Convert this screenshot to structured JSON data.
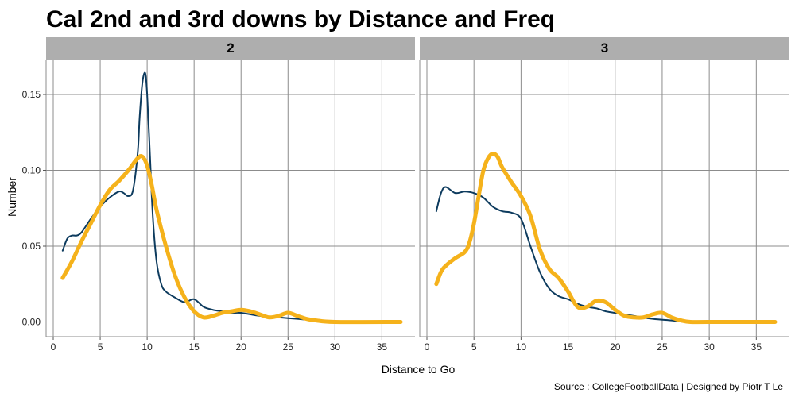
{
  "chart_data": {
    "type": "line",
    "title": "Cal 2nd and 3rd downs by Distance and Freq",
    "xlabel": "Distance to Go",
    "ylabel": "Number",
    "caption": "Source : CollegeFootballData | Designed by Piotr T Le",
    "xlim": [
      0,
      37
    ],
    "ylim": [
      0,
      0.165
    ],
    "x_ticks": [
      0,
      5,
      10,
      15,
      20,
      25,
      30,
      35
    ],
    "y_ticks": [
      0.0,
      0.05,
      0.1,
      0.15
    ],
    "y_tick_labels": [
      "0.00",
      "0.05",
      "0.10",
      "0.15"
    ],
    "colors": {
      "thin_series": "#0d3b5e",
      "thick_series": "#f5b21b",
      "strip": "#aeaeae",
      "grid": "#8c8c8c"
    },
    "facets": [
      {
        "label": "2",
        "series": [
          {
            "name": "thin",
            "x": [
              1,
              1.5,
              2,
              2.5,
              3,
              4,
              5,
              6,
              7,
              7.5,
              8,
              8.5,
              9,
              9.2,
              9.5,
              9.8,
              10,
              10.3,
              10.6,
              11,
              11.5,
              12,
              13,
              14,
              15,
              16,
              17,
              18,
              19,
              20,
              22,
              24,
              26,
              28,
              30,
              37
            ],
            "values": [
              0.047,
              0.055,
              0.057,
              0.057,
              0.059,
              0.068,
              0.076,
              0.082,
              0.086,
              0.085,
              0.083,
              0.087,
              0.112,
              0.135,
              0.158,
              0.164,
              0.15,
              0.11,
              0.07,
              0.04,
              0.025,
              0.02,
              0.016,
              0.013,
              0.015,
              0.01,
              0.008,
              0.007,
              0.006,
              0.006,
              0.004,
              0.003,
              0.002,
              0.001,
              0.0,
              0.0
            ]
          },
          {
            "name": "thick",
            "x": [
              1,
              2,
              3,
              4,
              5,
              6,
              7,
              8,
              9,
              9.5,
              10,
              10.5,
              11,
              12,
              13,
              14,
              15,
              16,
              17,
              18,
              19,
              20,
              21,
              22,
              23,
              24,
              25,
              26,
              27,
              28,
              30,
              37
            ],
            "values": [
              0.029,
              0.04,
              0.053,
              0.065,
              0.077,
              0.087,
              0.093,
              0.1,
              0.108,
              0.109,
              0.103,
              0.09,
              0.074,
              0.05,
              0.03,
              0.016,
              0.007,
              0.003,
              0.004,
              0.006,
              0.007,
              0.008,
              0.007,
              0.005,
              0.003,
              0.004,
              0.006,
              0.004,
              0.002,
              0.001,
              0.0,
              0.0
            ]
          }
        ]
      },
      {
        "label": "3",
        "series": [
          {
            "name": "thin",
            "x": [
              1,
              1.5,
              2,
              3,
              4,
              5,
              6,
              7,
              8,
              9,
              10,
              11,
              12,
              13,
              14,
              15,
              16,
              17,
              18,
              19,
              20,
              21,
              22,
              24,
              26,
              28,
              37
            ],
            "values": [
              0.073,
              0.085,
              0.089,
              0.085,
              0.086,
              0.085,
              0.082,
              0.076,
              0.073,
              0.072,
              0.068,
              0.05,
              0.033,
              0.022,
              0.017,
              0.015,
              0.012,
              0.01,
              0.009,
              0.007,
              0.006,
              0.005,
              0.004,
              0.002,
              0.001,
              0.0,
              0.0
            ]
          },
          {
            "name": "thick",
            "x": [
              1,
              1.5,
              2,
              3,
              4,
              4.5,
              5,
              5.5,
              6,
              6.5,
              7,
              7.5,
              8,
              9,
              10,
              11,
              12,
              13,
              14,
              15,
              16,
              17,
              18,
              19,
              20,
              21,
              22,
              23,
              24,
              25,
              26,
              27,
              28,
              30,
              37
            ],
            "values": [
              0.025,
              0.033,
              0.037,
              0.042,
              0.046,
              0.052,
              0.065,
              0.083,
              0.1,
              0.108,
              0.111,
              0.109,
              0.102,
              0.092,
              0.083,
              0.07,
              0.048,
              0.035,
              0.029,
              0.02,
              0.01,
              0.01,
              0.014,
              0.013,
              0.008,
              0.004,
              0.003,
              0.003,
              0.005,
              0.006,
              0.003,
              0.001,
              0.0,
              0.0,
              0.0
            ]
          }
        ]
      }
    ]
  }
}
